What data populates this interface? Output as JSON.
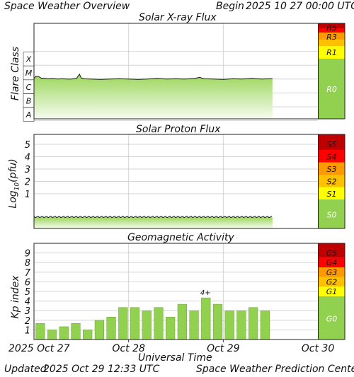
{
  "header": {
    "title": "Space Weather Overview",
    "begin_label": "Begin",
    "begin_value": "2025 10 27 00:00 UTC"
  },
  "footer": {
    "updated_label": "Updated",
    "updated_value": "2025 Oct 29 12:33 UTC",
    "credit": "Space Weather Prediction Center"
  },
  "colors": {
    "panel_bg": "#ffffff",
    "grid": "#d4d4d4",
    "bar_green": "#92d050",
    "bar_edge": "#6aa337",
    "fill_top": "#9bd65a",
    "fill_bottom": "#f6fcef",
    "scale_0": "#92d050",
    "scale_1": "#ffff00",
    "scale_2": "#ffc000",
    "scale_3": "#ff9900",
    "scale_4": "#ff0000",
    "scale_5": "#c00000"
  },
  "chart_data": [
    {
      "type": "area",
      "title": "Solar X-ray Flux",
      "ylabel": "Flare Class",
      "y_categories": [
        "A",
        "B",
        "C",
        "M",
        "X"
      ],
      "x_range_days": [
        0,
        3
      ],
      "data_end_day": 2.52,
      "series": [
        {
          "x": [
            0.0,
            0.02,
            0.05,
            0.08,
            0.1,
            0.15,
            0.2,
            0.25,
            0.3,
            0.35,
            0.4,
            0.45,
            0.48,
            0.5,
            0.53,
            0.6,
            0.7,
            0.8,
            0.9,
            1.0,
            1.1,
            1.2,
            1.3,
            1.4,
            1.5,
            1.6,
            1.7,
            1.75,
            1.8,
            1.9,
            2.0,
            2.1,
            2.2,
            2.3,
            2.4,
            2.5,
            2.52
          ],
          "y": [
            2.55,
            2.7,
            2.68,
            2.55,
            2.57,
            2.52,
            2.54,
            2.5,
            2.52,
            2.5,
            2.5,
            2.55,
            2.85,
            2.58,
            2.52,
            2.5,
            2.48,
            2.5,
            2.52,
            2.5,
            2.48,
            2.5,
            2.55,
            2.5,
            2.52,
            2.5,
            2.55,
            2.62,
            2.52,
            2.5,
            2.48,
            2.52,
            2.5,
            2.55,
            2.5,
            2.52,
            2.52
          ]
        }
      ],
      "scale_labels": [
        "R0",
        "R1",
        "R3",
        "R5"
      ]
    },
    {
      "type": "area",
      "title": "Solar Proton Flux",
      "ylabel": "Log10(pfu)",
      "yticks": [
        1,
        2,
        3,
        4,
        5
      ],
      "ylim": [
        -1.8,
        5.8
      ],
      "x_range_days": [
        0,
        3
      ],
      "data_end_day": 2.52,
      "series": [
        {
          "x": [
            0.0,
            2.52
          ],
          "y": [
            -0.88,
            -0.88
          ]
        }
      ],
      "scale_labels": [
        "S0",
        "S1",
        "S2",
        "S3",
        "S4",
        "S5"
      ]
    },
    {
      "type": "bar",
      "title": "Geomagnetic Activity",
      "ylabel": "Kp index",
      "xlabel": "Universal Time",
      "yticks": [
        1,
        2,
        3,
        4,
        5,
        6,
        7,
        8,
        9
      ],
      "ylim": [
        0,
        10
      ],
      "xticks": [
        "2025 Oct 27",
        "Oct 28",
        "Oct 29",
        "Oct 30"
      ],
      "values": [
        1.67,
        1.0,
        1.33,
        1.67,
        1.0,
        2.0,
        2.33,
        3.33,
        3.33,
        3.0,
        3.33,
        2.33,
        3.67,
        3.0,
        4.33,
        3.67,
        3.0,
        3.0,
        3.33,
        3.0
      ],
      "annotations": [
        {
          "index": 14,
          "text": "4+"
        }
      ],
      "scale_labels": [
        "G0",
        "G1",
        "G2",
        "G3",
        "G4",
        "G5"
      ]
    }
  ]
}
